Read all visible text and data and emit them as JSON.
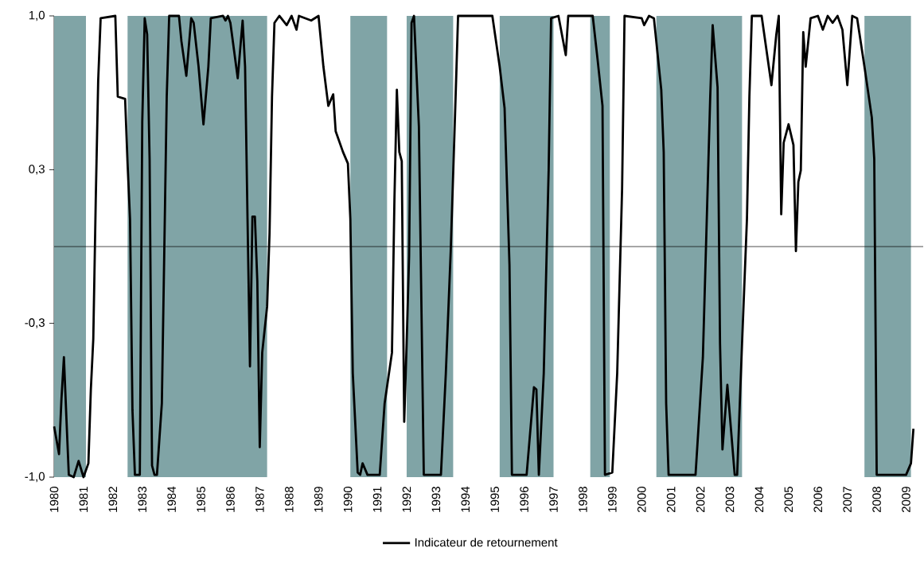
{
  "chart_data": {
    "type": "line",
    "xlim": [
      "1980-01",
      "2009-08"
    ],
    "xticks": [
      "1980",
      "1981",
      "1982",
      "1983",
      "1984",
      "1985",
      "1986",
      "1987",
      "1988",
      "1989",
      "1990",
      "1991",
      "1992",
      "1993",
      "1994",
      "1995",
      "1996",
      "1997",
      "1998",
      "1999",
      "2000",
      "2001",
      "2002",
      "2003",
      "2004",
      "2005",
      "2006",
      "2007",
      "2008",
      "2009"
    ],
    "ylim": [
      -1,
      1
    ],
    "yticks": [
      {
        "value": -1,
        "label": "-1,0"
      },
      {
        "value": -0.333,
        "label": "-0,3"
      },
      {
        "value": 0.333,
        "label": "0,3"
      },
      {
        "value": 1,
        "label": "1,0"
      }
    ],
    "legend": "bottom",
    "marker": "none",
    "line_style": "solid",
    "bands": [
      {
        "axis": "x",
        "from": "1980-01",
        "to": "1981-02",
        "color": "#80a4a6"
      },
      {
        "axis": "x",
        "from": "1982-07",
        "to": "1987-04",
        "color": "#80a4a6"
      },
      {
        "axis": "x",
        "from": "1990-02",
        "to": "1991-05",
        "color": "#80a4a6"
      },
      {
        "axis": "x",
        "from": "1992-01",
        "to": "1993-08",
        "color": "#80a4a6"
      },
      {
        "axis": "x",
        "from": "1995-03",
        "to": "1997-01",
        "color": "#80a4a6"
      },
      {
        "axis": "x",
        "from": "1998-04",
        "to": "1998-12",
        "color": "#80a4a6"
      },
      {
        "axis": "x",
        "from": "2000-07",
        "to": "2003-06",
        "color": "#80a4a6"
      },
      {
        "axis": "x",
        "from": "2007-08",
        "to": "2009-03",
        "color": "#80a4a6"
      }
    ],
    "series": [
      {
        "name": "Indicateur de retournement",
        "color": "#000000",
        "x": [
          "1980-01",
          "1980-03",
          "1980-04",
          "1980-05",
          "1980-06",
          "1980-07",
          "1980-09",
          "1980-11",
          "1981-01",
          "1981-03",
          "1981-04",
          "1981-05",
          "1981-06",
          "1981-07",
          "1981-08",
          "1982-02",
          "1982-03",
          "1982-06",
          "1982-07",
          "1982-08",
          "1982-09",
          "1982-10",
          "1982-12",
          "1983-01",
          "1983-02",
          "1983-03",
          "1983-04",
          "1983-05",
          "1983-06",
          "1983-07",
          "1983-09",
          "1983-10",
          "1983-11",
          "1983-12",
          "1984-04",
          "1984-05",
          "1984-07",
          "1984-09",
          "1984-10",
          "1984-12",
          "1985-02",
          "1985-04",
          "1985-05",
          "1985-10",
          "1985-11",
          "1985-12",
          "1986-01",
          "1986-04",
          "1986-06",
          "1986-07",
          "1986-08",
          "1986-09",
          "1986-10",
          "1986-11",
          "1986-12",
          "1987-01",
          "1987-02",
          "1987-04",
          "1987-05",
          "1987-06",
          "1987-07",
          "1987-09",
          "1987-12",
          "1988-02",
          "1988-04",
          "1988-05",
          "1988-10",
          "1989-01",
          "1989-03",
          "1989-05",
          "1989-07",
          "1989-08",
          "1989-11",
          "1990-01",
          "1990-02",
          "1990-03",
          "1990-05",
          "1990-06",
          "1990-07",
          "1990-09",
          "1991-02",
          "1991-04",
          "1991-07",
          "1991-08",
          "1991-09",
          "1991-10",
          "1991-11",
          "1991-12",
          "1992-01",
          "1992-02",
          "1992-03",
          "1992-04",
          "1992-06",
          "1992-08",
          "1993-03",
          "1993-05",
          "1993-07",
          "1993-09",
          "1993-10",
          "1994-12",
          "1995-03",
          "1995-05",
          "1995-07",
          "1995-08",
          "1996-02",
          "1996-05",
          "1996-06",
          "1996-07",
          "1996-09",
          "1996-11",
          "1996-12",
          "1997-03",
          "1997-06",
          "1997-07",
          "1998-05",
          "1998-07",
          "1998-09",
          "1998-10",
          "1999-01",
          "1999-03",
          "1999-05",
          "1999-06",
          "2000-01",
          "2000-02",
          "2000-04",
          "2000-06",
          "2000-09",
          "2000-10",
          "2000-11",
          "2000-12",
          "2001-11",
          "2002-02",
          "2002-05",
          "2002-06",
          "2002-08",
          "2002-09",
          "2002-10",
          "2002-12",
          "2003-03",
          "2003-04",
          "2003-06",
          "2003-08",
          "2003-09",
          "2003-10",
          "2004-02",
          "2004-06",
          "2004-08",
          "2004-09",
          "2004-10",
          "2004-11",
          "2005-01",
          "2005-03",
          "2005-04",
          "2005-05",
          "2005-06",
          "2005-07",
          "2005-08",
          "2005-10",
          "2006-01",
          "2006-03",
          "2006-05",
          "2006-07",
          "2006-09",
          "2006-11",
          "2007-01",
          "2007-03",
          "2007-05",
          "2007-08",
          "2007-11",
          "2007-12",
          "2008-01",
          "2009-01",
          "2009-03",
          "2009-04"
        ],
        "values": [
          -0.78,
          -0.9,
          -0.66,
          -0.48,
          -0.74,
          -0.99,
          -1.0,
          -0.93,
          -1.0,
          -0.94,
          -0.62,
          -0.4,
          0.2,
          0.72,
          0.99,
          1.0,
          0.65,
          0.64,
          0.36,
          0.12,
          -0.71,
          -0.99,
          -0.99,
          0.54,
          0.99,
          0.92,
          0.38,
          -0.95,
          -0.99,
          -0.99,
          -0.68,
          -0.02,
          0.65,
          1.0,
          1.0,
          0.89,
          0.74,
          0.99,
          0.97,
          0.78,
          0.53,
          0.78,
          0.99,
          1.0,
          0.98,
          1.0,
          0.97,
          0.73,
          0.98,
          0.78,
          0.12,
          -0.52,
          0.13,
          0.13,
          -0.15,
          -0.87,
          -0.46,
          -0.26,
          0.06,
          0.65,
          0.97,
          1.0,
          0.96,
          1.0,
          0.94,
          1.0,
          0.98,
          1.0,
          0.78,
          0.61,
          0.66,
          0.5,
          0.41,
          0.36,
          0.12,
          -0.55,
          -0.98,
          -0.99,
          -0.94,
          -0.99,
          -0.99,
          -0.68,
          -0.46,
          0.2,
          0.68,
          0.41,
          0.37,
          -0.76,
          -0.42,
          -0.04,
          0.97,
          1.0,
          0.52,
          -0.99,
          -0.99,
          -0.55,
          -0.02,
          0.65,
          1.0,
          1.0,
          0.78,
          0.6,
          -0.08,
          -0.99,
          -0.99,
          -0.61,
          -0.62,
          -0.99,
          -0.55,
          0.33,
          0.99,
          1.0,
          0.83,
          1.0,
          1.0,
          0.81,
          0.61,
          -0.99,
          -0.98,
          -0.55,
          0.25,
          1.0,
          0.99,
          0.96,
          1.0,
          0.99,
          0.68,
          0.41,
          -0.68,
          -0.99,
          -0.99,
          -0.48,
          0.65,
          0.96,
          0.69,
          -0.42,
          -0.88,
          -0.6,
          -0.99,
          -0.99,
          -0.42,
          0.12,
          0.65,
          1.0,
          1.0,
          0.7,
          0.92,
          1.0,
          0.14,
          0.45,
          0.53,
          0.44,
          -0.02,
          0.28,
          0.33,
          0.93,
          0.78,
          0.99,
          1.0,
          0.94,
          1.0,
          0.97,
          1.0,
          0.94,
          0.7,
          1.0,
          0.99,
          0.78,
          0.56,
          0.38,
          -0.99,
          -0.99,
          -0.94,
          -0.79
        ]
      }
    ]
  }
}
